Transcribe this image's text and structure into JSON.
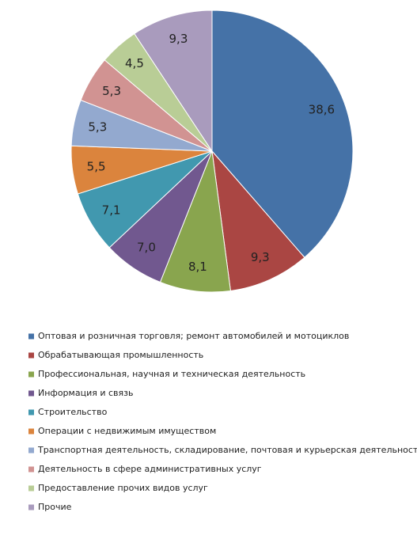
{
  "chart_data": {
    "type": "pie",
    "categories": [
      "Оптовая и розничная торговля; ремонт автомобилей и мотоциклов",
      "Обрабатывающая промышленность",
      "Профессиональная, научная и техническая  деятельность",
      "Информация и связь",
      "Строительство",
      "Операции с недвижимым  имуществом",
      "Транспортная деятельность,  складирование, почтовая и курьерская деятельность",
      "Деятельность  в сфере административных услуг",
      "Предоставление  прочих видов услуг",
      "Прочие"
    ],
    "values": [
      38.6,
      9.3,
      8.1,
      7.0,
      7.1,
      5.5,
      5.3,
      5.3,
      4.5,
      9.3
    ],
    "value_labels": [
      "38,6",
      "9,3",
      "8,1",
      "7,0",
      "7,1",
      "5,5",
      "5,3",
      "5,3",
      "4,5",
      "9,3"
    ],
    "colors": [
      "#4572a7",
      "#aa4643",
      "#89a54e",
      "#71588f",
      "#4198af",
      "#db843d",
      "#93a9cf",
      "#d19392",
      "#b9cd96",
      "#a99bbd"
    ]
  }
}
